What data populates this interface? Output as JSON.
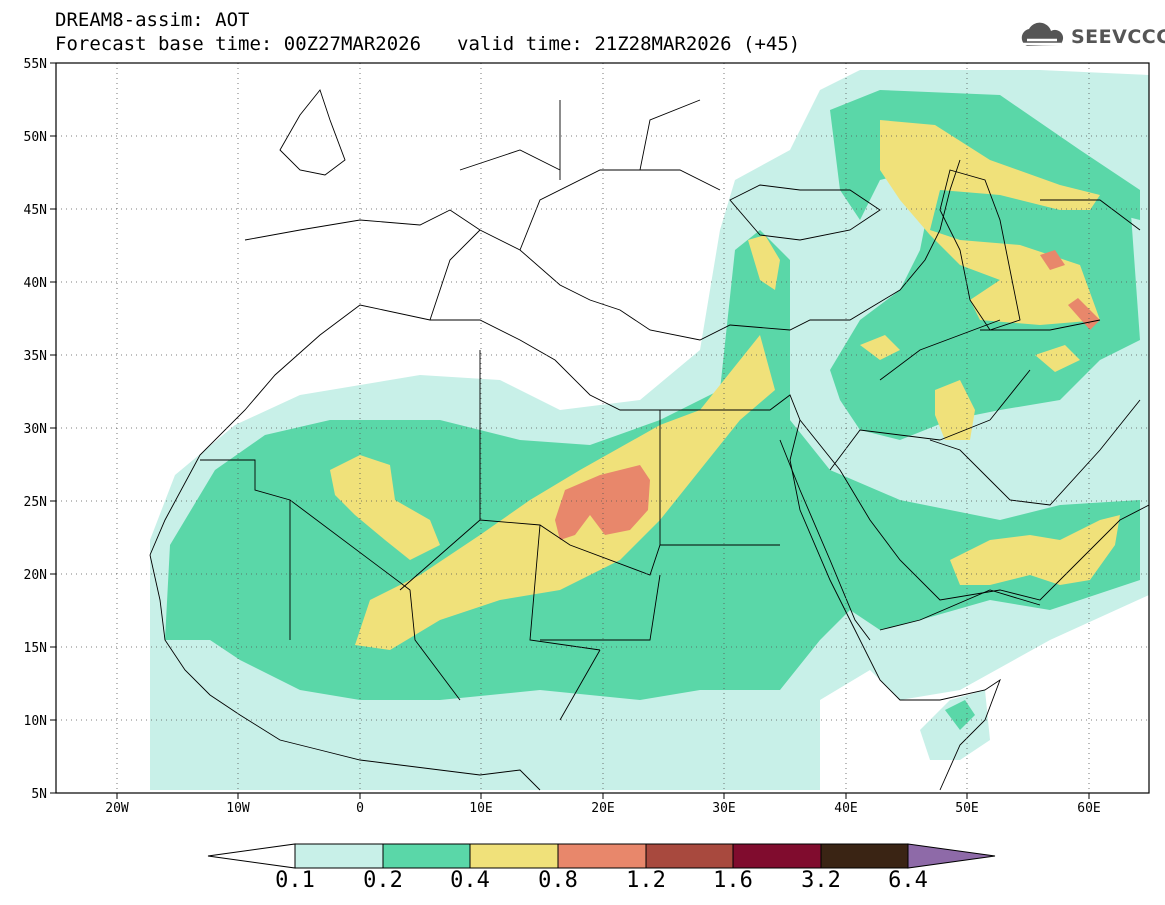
{
  "header": {
    "title_line1": "DREAM8-assim: AOT",
    "base_time": "Forecast base time: 00Z27MAR2026",
    "valid_time": "valid time: 21Z28MAR2026 (+45)"
  },
  "logo": {
    "text": "SEEVCCC",
    "icon": "cloud-icon"
  },
  "map": {
    "lat_labels": [
      "55N",
      "50N",
      "45N",
      "40N",
      "35N",
      "30N",
      "25N",
      "20N",
      "15N",
      "10N",
      "5N"
    ],
    "lon_labels": [
      "20W",
      "10W",
      "0",
      "10E",
      "20E",
      "30E",
      "40E",
      "50E",
      "60E"
    ],
    "lat_range": [
      5,
      55
    ],
    "lon_range": [
      -25,
      65
    ],
    "grid": "dotted",
    "colors": {
      "0.1": "#c8f0e8",
      "0.2": "#5ad7a8",
      "0.4": "#f0e17a",
      "0.8": "#e8876b",
      "1.2": "#a8493e",
      "1.6": "#800c2e",
      "3.2": "#3a2414",
      "6.4": "#8e6aa8"
    }
  },
  "colorbar": {
    "labels": [
      "0.1",
      "0.2",
      "0.4",
      "0.8",
      "1.2",
      "1.6",
      "3.2",
      "6.4"
    ],
    "segment_colors": [
      "#c8f0e8",
      "#5ad7a8",
      "#f0e17a",
      "#e8876b",
      "#a8493e",
      "#800c2e",
      "#3a2414"
    ],
    "low_end_color": "#ffffff",
    "high_end_color": "#8e6aa8"
  }
}
